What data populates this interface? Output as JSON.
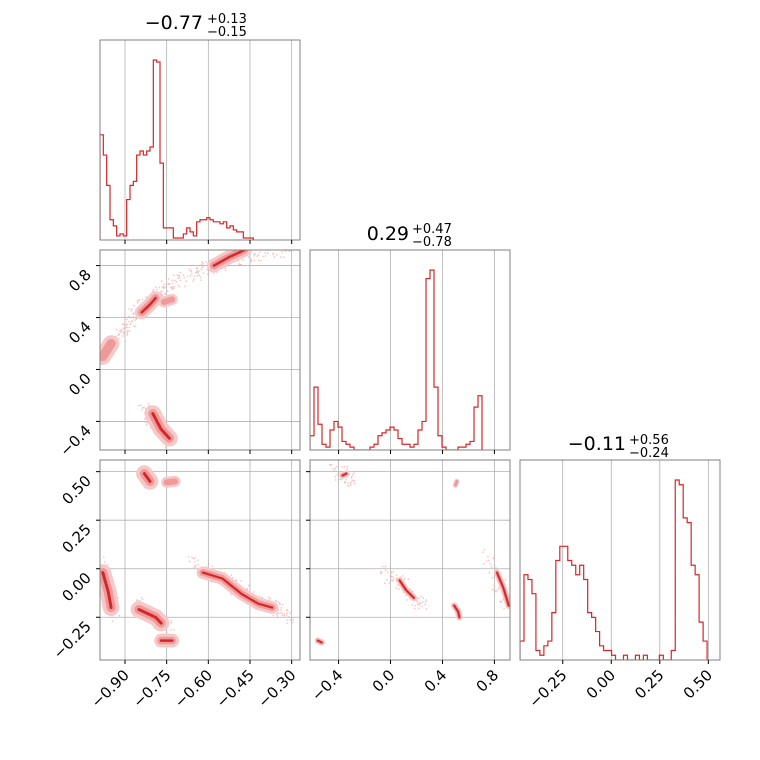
{
  "chart_data": {
    "type": "corner",
    "color": "#d62728",
    "fill_outer": "#f7c8c8",
    "fill_inner": "#ee9a9a",
    "scatter_color": "#f2b2b2",
    "grid": true,
    "params": [
      {
        "range": [
          -0.99,
          -0.27
        ],
        "ticks": [
          -0.9,
          -0.75,
          -0.6,
          -0.45,
          -0.3
        ],
        "tick_labels": [
          "−0.90",
          "−0.75",
          "−0.60",
          "−0.45",
          "−0.30"
        ],
        "title_main": "−0.77",
        "title_plus": "+0.13",
        "title_minus": "−0.15"
      },
      {
        "range": [
          -0.62,
          0.92
        ],
        "ticks": [
          -0.4,
          0.0,
          0.4,
          0.8
        ],
        "tick_labels": [
          "−0.4",
          "0.0",
          "0.4",
          "0.8"
        ],
        "title_main": "0.29",
        "title_plus": "+0.47",
        "title_minus": "−0.78"
      },
      {
        "range": [
          -0.47,
          0.56
        ],
        "ticks": [
          -0.25,
          0.0,
          0.25,
          0.5
        ],
        "tick_labels": [
          "−0.25",
          "0.00",
          "0.25",
          "0.50"
        ],
        "title_main": "−0.11",
        "title_plus": "+0.56",
        "title_minus": "−0.24"
      }
    ],
    "histograms": [
      {
        "param": 0,
        "edges_start": -0.99,
        "bin_width": 0.012,
        "counts": [
          52,
          42,
          27,
          10,
          7,
          2,
          3,
          2,
          20,
          27,
          29,
          42,
          44,
          42,
          44,
          46,
          89,
          88,
          38,
          6,
          6,
          6,
          1,
          1,
          1,
          3,
          6,
          4,
          2,
          9,
          10,
          10,
          11,
          10,
          9,
          9,
          8,
          9,
          6,
          7,
          5,
          4,
          4,
          1,
          1,
          1
        ]
      },
      {
        "param": 1,
        "edges_start": -0.62,
        "bin_width": 0.0308,
        "counts": [
          5,
          22,
          9,
          2,
          1,
          7,
          10,
          8,
          3,
          2,
          1,
          0,
          0,
          0,
          0,
          1,
          2,
          5,
          6,
          7,
          8,
          7,
          4,
          2,
          2,
          1,
          2,
          7,
          10,
          60,
          63,
          22,
          5,
          1,
          0,
          0,
          0,
          1,
          1,
          2,
          3,
          15,
          19
        ]
      },
      {
        "param": 2,
        "edges_start": -0.47,
        "bin_width": 0.0205,
        "counts": [
          4,
          18,
          17,
          14,
          2,
          1,
          3,
          4,
          10,
          21,
          24,
          24,
          21,
          20,
          18,
          20,
          17,
          10,
          9,
          6,
          3,
          2,
          2,
          1,
          0,
          0,
          1,
          0,
          0,
          1,
          0,
          1,
          0,
          0,
          0,
          1,
          0,
          0,
          2,
          38,
          37,
          30,
          29,
          20,
          18,
          8,
          4
        ]
      }
    ],
    "pairs": [
      {
        "x_param": 0,
        "y_param": 1,
        "ridges": [
          {
            "points": [
              [
                -0.58,
                0.8
              ],
              [
                -0.53,
                0.86
              ],
              [
                -0.47,
                0.92
              ]
            ],
            "width": 0.05,
            "levels": 3
          },
          {
            "points": [
              [
                -0.84,
                0.44
              ],
              [
                -0.81,
                0.5
              ],
              [
                -0.79,
                0.55
              ]
            ],
            "width": 0.05,
            "levels": 3
          },
          {
            "points": [
              [
                -0.76,
                0.52
              ],
              [
                -0.73,
                0.54
              ]
            ],
            "width": 0.04,
            "levels": 2
          },
          {
            "points": [
              [
                -0.98,
                0.1
              ],
              [
                -0.95,
                0.2
              ]
            ],
            "width": 0.06,
            "levels": 2
          },
          {
            "points": [
              [
                -0.8,
                -0.34
              ],
              [
                -0.77,
                -0.46
              ],
              [
                -0.74,
                -0.53
              ]
            ],
            "width": 0.06,
            "levels": 3
          }
        ],
        "scatter_paths": [
          [
            [
              -0.98,
              0.08
            ],
            [
              -0.9,
              0.31
            ],
            [
              -0.85,
              0.46
            ],
            [
              -0.78,
              0.58
            ],
            [
              -0.7,
              0.7
            ],
            [
              -0.6,
              0.78
            ],
            [
              -0.45,
              0.88
            ],
            [
              -0.3,
              0.92
            ]
          ],
          [
            [
              -0.83,
              -0.3
            ],
            [
              -0.8,
              -0.4
            ],
            [
              -0.74,
              -0.56
            ]
          ]
        ]
      },
      {
        "x_param": 0,
        "y_param": 2,
        "ridges": [
          {
            "points": [
              [
                -0.83,
                0.49
              ],
              [
                -0.81,
                0.45
              ]
            ],
            "width": 0.06,
            "levels": 3
          },
          {
            "points": [
              [
                -0.75,
                0.445
              ],
              [
                -0.72,
                0.45
              ]
            ],
            "width": 0.04,
            "levels": 2
          },
          {
            "points": [
              [
                -0.98,
                -0.02
              ],
              [
                -0.96,
                -0.12
              ],
              [
                -0.95,
                -0.2
              ]
            ],
            "width": 0.06,
            "levels": 3
          },
          {
            "points": [
              [
                -0.85,
                -0.21
              ],
              [
                -0.79,
                -0.25
              ],
              [
                -0.77,
                -0.28
              ]
            ],
            "width": 0.06,
            "levels": 3
          },
          {
            "points": [
              [
                -0.77,
                -0.37
              ],
              [
                -0.73,
                -0.37
              ]
            ],
            "width": 0.05,
            "levels": 3
          },
          {
            "points": [
              [
                -0.62,
                -0.02
              ],
              [
                -0.55,
                -0.05
              ],
              [
                -0.48,
                -0.13
              ],
              [
                -0.42,
                -0.18
              ],
              [
                -0.37,
                -0.2
              ]
            ],
            "width": 0.045,
            "levels": 3
          }
        ],
        "scatter_paths": [
          [
            [
              -0.66,
              0.04
            ],
            [
              -0.52,
              -0.08
            ],
            [
              -0.38,
              -0.19
            ],
            [
              -0.3,
              -0.26
            ]
          ],
          [
            [
              -0.99,
              0.05
            ],
            [
              -0.93,
              -0.26
            ]
          ],
          [
            [
              -0.86,
              -0.16
            ],
            [
              -0.74,
              -0.32
            ]
          ]
        ]
      },
      {
        "x_param": 1,
        "y_param": 2,
        "ridges": [
          {
            "points": [
              [
                -0.37,
                0.48
              ],
              [
                -0.34,
                0.49
              ]
            ],
            "width": 0.05,
            "levels": 3
          },
          {
            "points": [
              [
                0.5,
                0.43
              ],
              [
                0.51,
                0.45
              ]
            ],
            "width": 0.04,
            "levels": 2
          },
          {
            "points": [
              [
                0.07,
                -0.06
              ],
              [
                0.12,
                -0.11
              ],
              [
                0.18,
                -0.15
              ]
            ],
            "width": 0.05,
            "levels": 3
          },
          {
            "points": [
              [
                0.49,
                -0.19
              ],
              [
                0.52,
                -0.22
              ],
              [
                0.53,
                -0.25
              ]
            ],
            "width": 0.05,
            "levels": 3
          },
          {
            "points": [
              [
                0.82,
                -0.02
              ],
              [
                0.87,
                -0.1
              ],
              [
                0.91,
                -0.19
              ]
            ],
            "width": 0.05,
            "levels": 3
          },
          {
            "points": [
              [
                -0.56,
                -0.37
              ],
              [
                -0.53,
                -0.38
              ]
            ],
            "width": 0.05,
            "levels": 3
          }
        ],
        "scatter_paths": [
          [
            [
              -0.05,
              -0.02
            ],
            [
              0.1,
              -0.08
            ],
            [
              0.25,
              -0.2
            ]
          ],
          [
            [
              0.75,
              0.08
            ],
            [
              0.9,
              -0.22
            ]
          ],
          [
            [
              -0.42,
              0.52
            ],
            [
              -0.3,
              0.44
            ]
          ]
        ]
      }
    ]
  }
}
